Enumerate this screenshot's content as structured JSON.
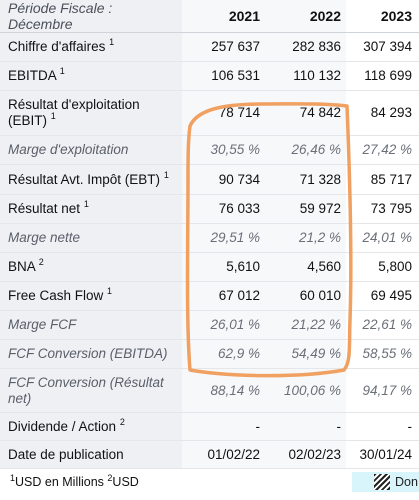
{
  "table": {
    "header": {
      "label": "Période Fiscale : Décembre",
      "years": [
        "2021",
        "2022",
        "2023"
      ]
    },
    "rows": [
      {
        "label": "Chiffre d'affaires",
        "note": "1",
        "italic": false,
        "values": [
          "257 637",
          "282 836",
          "307 394"
        ]
      },
      {
        "label": "EBITDA",
        "note": "1",
        "italic": false,
        "values": [
          "106 531",
          "110 132",
          "118 699"
        ]
      },
      {
        "label": "Résultat d'exploitation (EBIT)",
        "note": "1",
        "italic": false,
        "values": [
          "78 714",
          "74 842",
          "84 293"
        ]
      },
      {
        "label": "Marge d'exploitation",
        "note": "",
        "italic": true,
        "values": [
          "30,55 %",
          "26,46 %",
          "27,42 %"
        ]
      },
      {
        "label": "Résultat Avt. Impôt (EBT)",
        "note": "1",
        "italic": false,
        "values": [
          "90 734",
          "71 328",
          "85 717"
        ]
      },
      {
        "label": "Résultat net",
        "note": "1",
        "italic": false,
        "values": [
          "76 033",
          "59 972",
          "73 795"
        ]
      },
      {
        "label": "Marge nette",
        "note": "",
        "italic": true,
        "values": [
          "29,51 %",
          "21,2 %",
          "24,01 %"
        ]
      },
      {
        "label": "BNA",
        "note": "2",
        "italic": false,
        "values": [
          "5,610",
          "4,560",
          "5,800"
        ]
      },
      {
        "label": "Free Cash Flow",
        "note": "1",
        "italic": false,
        "values": [
          "67 012",
          "60 010",
          "69 495"
        ]
      },
      {
        "label": "Marge FCF",
        "note": "",
        "italic": true,
        "values": [
          "26,01 %",
          "21,22 %",
          "22,61 %"
        ]
      },
      {
        "label": "FCF Conversion (EBITDA)",
        "note": "",
        "italic": true,
        "values": [
          "62,9 %",
          "54,49 %",
          "58,55 %"
        ]
      },
      {
        "label": "FCF Conversion (Résultat net)",
        "note": "",
        "italic": true,
        "values": [
          "88,14 %",
          "100,06 %",
          "94,17 %"
        ]
      },
      {
        "label": "Dividende / Action",
        "note": "2",
        "italic": false,
        "values": [
          "-",
          "-",
          "-"
        ]
      },
      {
        "label": "Date de publication",
        "note": "",
        "italic": false,
        "values": [
          "01/02/22",
          "02/02/23",
          "30/01/24"
        ]
      }
    ]
  },
  "footnote": {
    "note1": "1",
    "text1": "USD en Millions ",
    "note2": "2",
    "text2": "USD"
  },
  "legend": {
    "text": "Don"
  },
  "colors": {
    "label_bg": "#eef0f4",
    "annotation": "#f0a060",
    "legend_bg": "#d8f5fb"
  }
}
